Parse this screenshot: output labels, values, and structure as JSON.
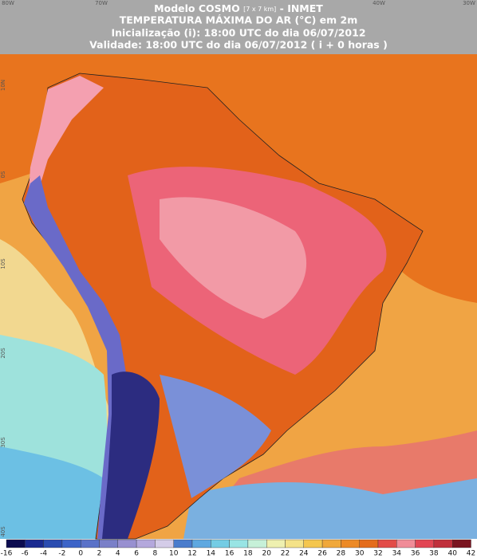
{
  "header": {
    "title_main": "Modelo COSMO",
    "title_res": "[7 x 7 km]",
    "title_org": "- INMET",
    "variable": "TEMPERATURA MÁXIMA DO AR (°C) em 2m",
    "init": "Inicialização (i): 18:00 UTC do dia 06/07/2012",
    "valid": "Validade: 18:00 UTC do dia 06/07/2012 ( i + 0 horas )"
  },
  "map": {
    "lon_labels": [
      "80W",
      "70W",
      "40W",
      "30W"
    ],
    "lat_labels": [
      "10N",
      "0S",
      "10S",
      "20S",
      "30S",
      "40S"
    ]
  },
  "colorbar": {
    "labels": [
      "-16",
      "-6",
      "-4",
      "-2",
      "0",
      "2",
      "4",
      "6",
      "8",
      "10",
      "12",
      "14",
      "16",
      "18",
      "20",
      "22",
      "24",
      "26",
      "28",
      "30",
      "32",
      "34",
      "36",
      "38",
      "40",
      "42"
    ],
    "colors": [
      "#0c0c50",
      "#1a2a90",
      "#2a4cb0",
      "#3c64c8",
      "#5a72c8",
      "#7a80c8",
      "#9890d0",
      "#b4a8dc",
      "#d4cce8",
      "#4a7ccc",
      "#5ea8e0",
      "#74cce4",
      "#98e4e4",
      "#c6f0d8",
      "#eef0b0",
      "#f4e288",
      "#f4c64e",
      "#f0a83a",
      "#ec8a26",
      "#e46c1c",
      "#e24c48",
      "#f08c98",
      "#e24654",
      "#c0303c",
      "#7a1420"
    ]
  }
}
